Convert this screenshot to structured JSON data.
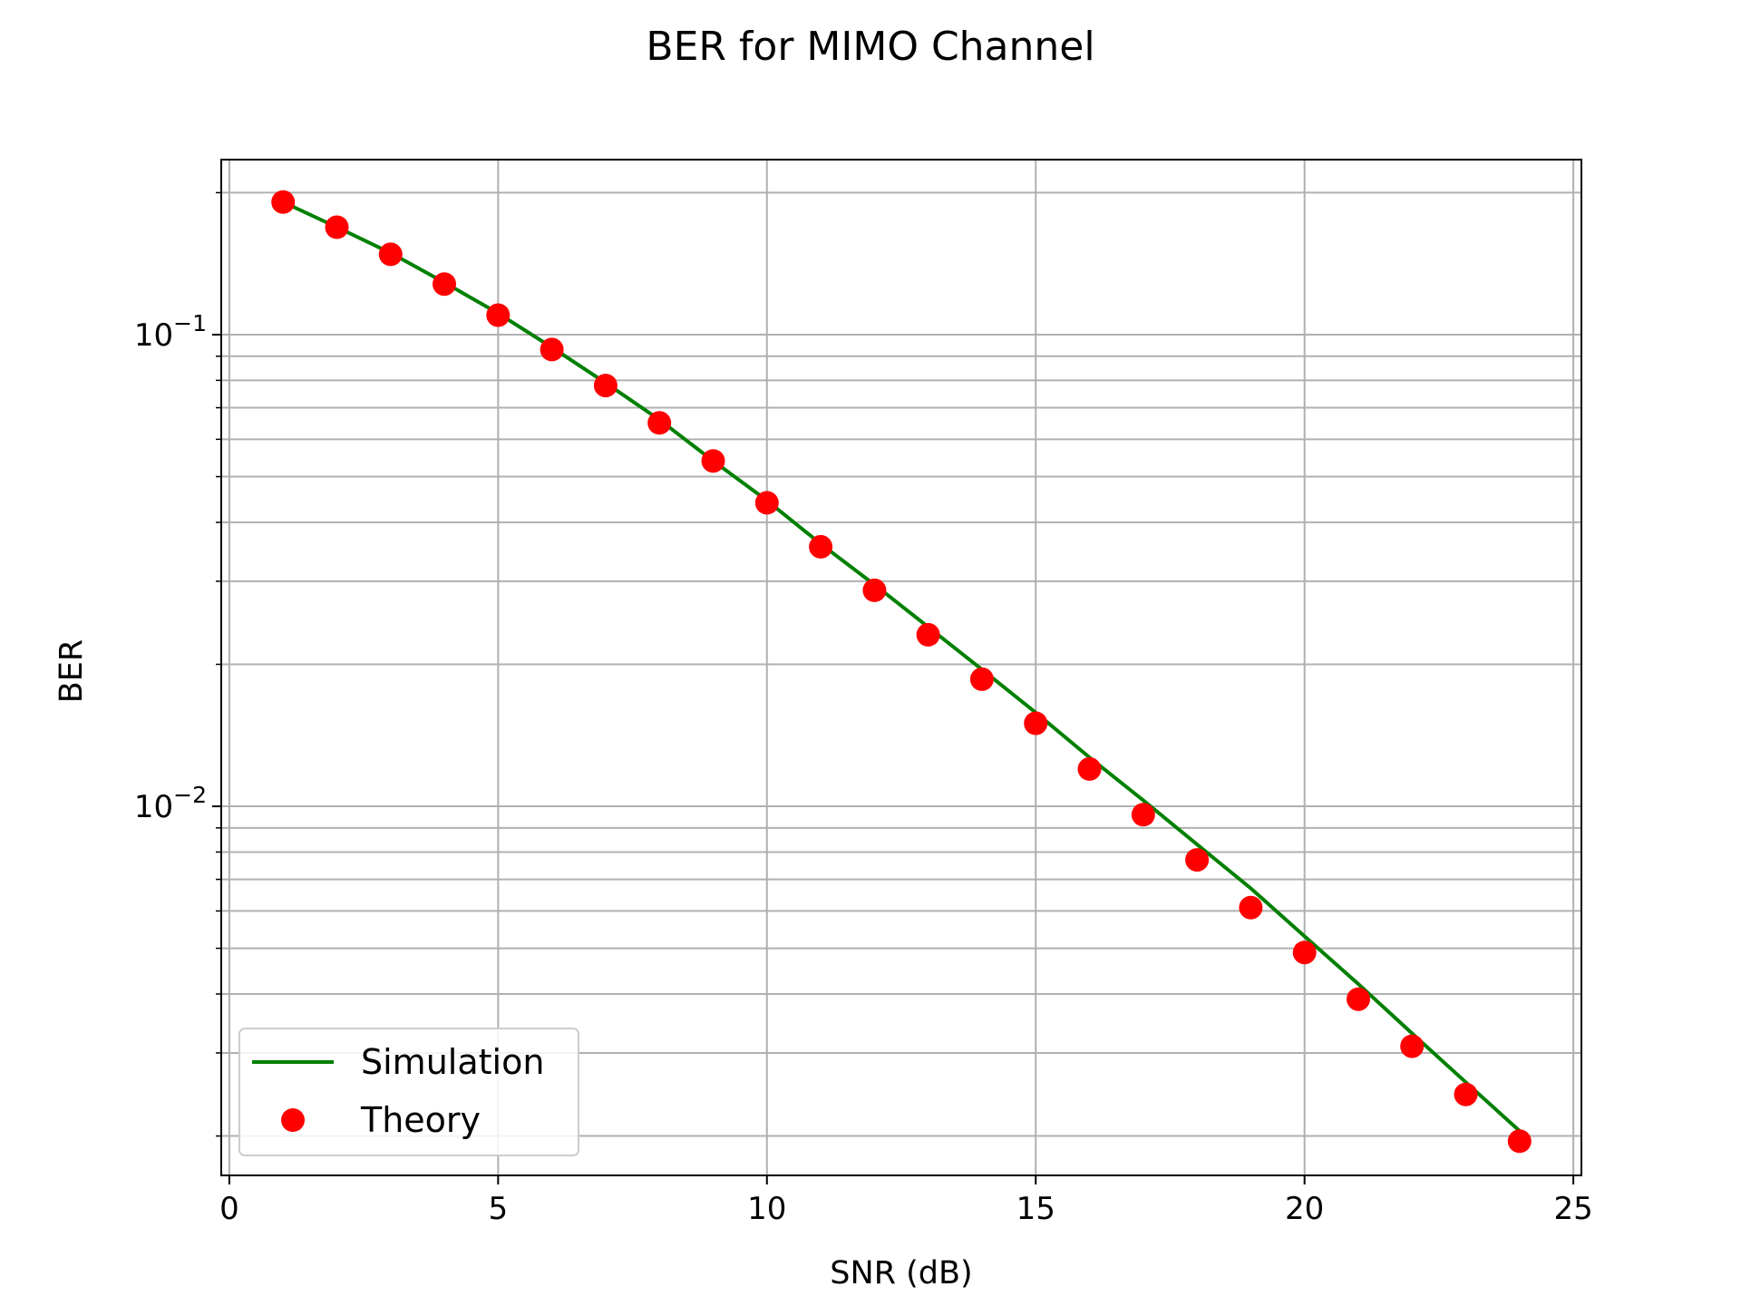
{
  "chart_data": {
    "type": "line",
    "title": "BER for MIMO Channel",
    "xlabel": "SNR (dB)",
    "ylabel": "BER",
    "xscale": "linear",
    "yscale": "log",
    "xlim": [
      -0.15,
      25.15
    ],
    "ylim": [
      0.00165,
      0.235
    ],
    "xticks": [
      0,
      5,
      10,
      15,
      20,
      25
    ],
    "xtick_labels": [
      "0",
      "5",
      "10",
      "15",
      "20",
      "25"
    ],
    "yticks_major": [
      0.01,
      0.1
    ],
    "ytick_labels": [
      {
        "base": "10",
        "exp": "−2"
      },
      {
        "base": "10",
        "exp": "−1"
      }
    ],
    "yticks_minor": [
      0.002,
      0.003,
      0.004,
      0.005,
      0.006,
      0.007,
      0.008,
      0.009,
      0.02,
      0.03,
      0.04,
      0.05,
      0.06,
      0.07,
      0.08,
      0.09,
      0.2
    ],
    "grid": true,
    "legend_position": "lower-left",
    "series": [
      {
        "name": "Simulation",
        "style": "line",
        "color": "#008000",
        "x": [
          1,
          2,
          3,
          4,
          5,
          6,
          7,
          8,
          9,
          10,
          11,
          12,
          13,
          14,
          15,
          16,
          17,
          18,
          19,
          20,
          21,
          22,
          23,
          24
        ],
        "y": [
          0.191,
          0.169,
          0.149,
          0.129,
          0.111,
          0.094,
          0.079,
          0.066,
          0.054,
          0.0445,
          0.036,
          0.0295,
          0.024,
          0.0195,
          0.0158,
          0.0127,
          0.0103,
          0.0083,
          0.0067,
          0.0053,
          0.0042,
          0.0033,
          0.0026,
          0.00205
        ]
      },
      {
        "name": "Theory",
        "style": "markers",
        "color": "#ff0000",
        "x": [
          1,
          2,
          3,
          4,
          5,
          6,
          7,
          8,
          9,
          10,
          11,
          12,
          13,
          14,
          15,
          16,
          17,
          18,
          19,
          20,
          21,
          22,
          23,
          24
        ],
        "y": [
          0.191,
          0.169,
          0.148,
          0.128,
          0.11,
          0.093,
          0.078,
          0.065,
          0.054,
          0.044,
          0.0355,
          0.0287,
          0.0231,
          0.0186,
          0.015,
          0.012,
          0.0096,
          0.0077,
          0.0061,
          0.0049,
          0.0039,
          0.0031,
          0.00245,
          0.00195
        ]
      }
    ]
  }
}
